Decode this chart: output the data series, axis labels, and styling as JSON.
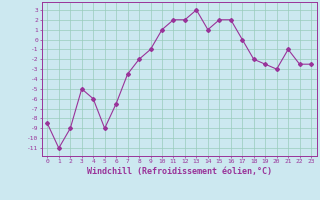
{
  "x": [
    0,
    1,
    2,
    3,
    4,
    5,
    6,
    7,
    8,
    9,
    10,
    11,
    12,
    13,
    14,
    15,
    16,
    17,
    18,
    19,
    20,
    21,
    22,
    23
  ],
  "y": [
    -8.5,
    -11,
    -9,
    -5,
    -6,
    -9,
    -6.5,
    -3.5,
    -2,
    -1,
    1,
    2,
    2,
    3,
    1,
    2,
    2,
    0,
    -2,
    -2.5,
    -3,
    -1,
    -2.5,
    -2.5
  ],
  "line_color": "#993399",
  "marker": "D",
  "marker_size": 2,
  "bg_color": "#cce8f0",
  "grid_color": "#99ccbb",
  "xlabel": "Windchill (Refroidissement éolien,°C)",
  "xlabel_fontsize": 6.0,
  "ylabel_ticks": [
    3,
    2,
    1,
    0,
    -1,
    -2,
    -3,
    -4,
    -5,
    -6,
    -7,
    -8,
    -9,
    -10,
    -11
  ],
  "xtick_labels": [
    "0",
    "1",
    "2",
    "3",
    "4",
    "5",
    "6",
    "7",
    "8",
    "9",
    "10",
    "11",
    "12",
    "13",
    "14",
    "15",
    "16",
    "17",
    "18",
    "19",
    "20",
    "21",
    "22",
    "23"
  ],
  "xlim": [
    -0.5,
    23.5
  ],
  "ylim": [
    -11.8,
    3.8
  ]
}
